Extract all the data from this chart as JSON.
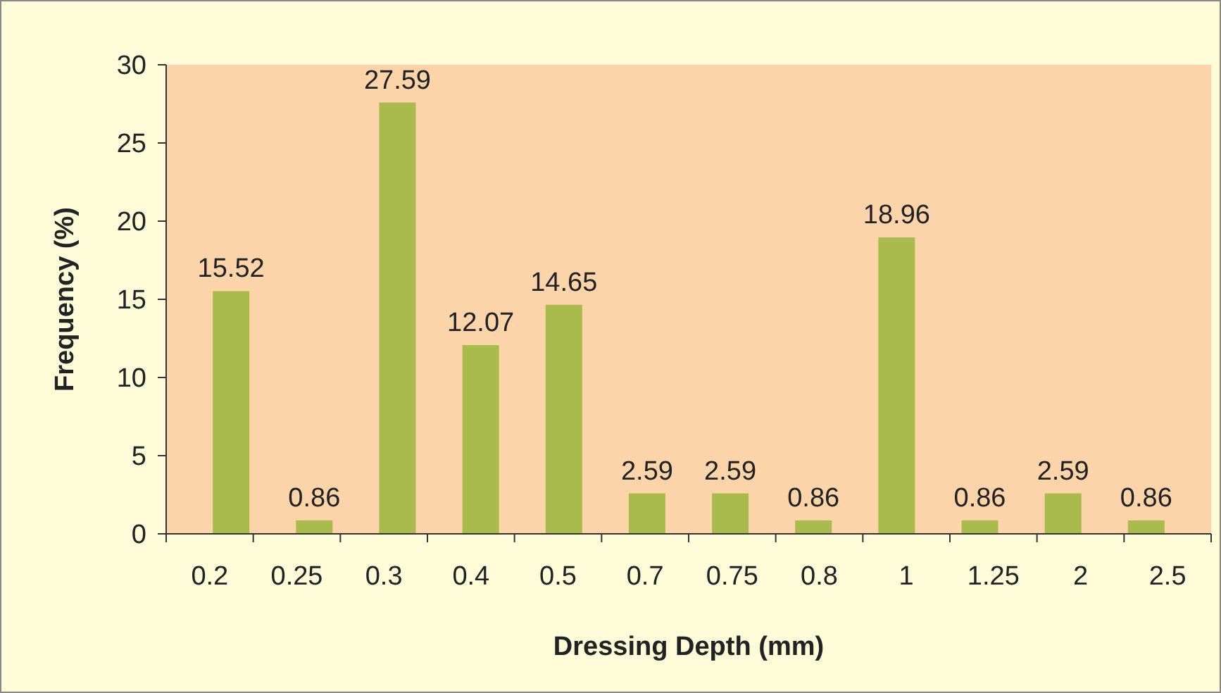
{
  "chart_data": {
    "type": "bar",
    "xlabel": "Dressing Depth (mm)",
    "ylabel": "Frequency (%)",
    "categories": [
      "0.2",
      "0.25",
      "0.3",
      "0.4",
      "0.5",
      "0.7",
      "0.75",
      "0.8",
      "1",
      "1.25",
      "2",
      "2.5"
    ],
    "values": [
      15.52,
      0.86,
      27.59,
      12.07,
      14.65,
      2.59,
      2.59,
      0.86,
      18.96,
      0.86,
      2.59,
      0.86
    ],
    "color": "#a9bb4c",
    "ylim": [
      0,
      30
    ],
    "yticks": [
      0,
      5,
      10,
      15,
      20,
      25,
      30
    ],
    "grid": false,
    "data_labels": true
  }
}
